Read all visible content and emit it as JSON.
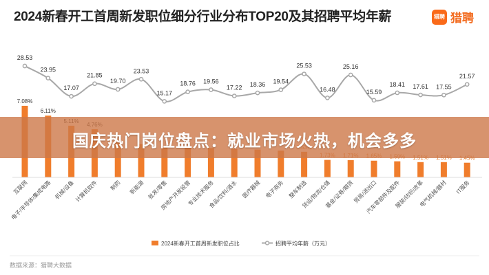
{
  "header": {
    "title": "2024新春开工首周新发职位细分行业分布TOP20及其招聘平均年薪"
  },
  "logo": {
    "mark": "猎聘",
    "text": "猎聘"
  },
  "banner": {
    "text": "国庆热门岗位盘点：就业市场火热，机会多多"
  },
  "source": {
    "text": "数据来源：猎聘大数据"
  },
  "colors": {
    "bar": "#f07d2c",
    "line": "#a8a8a8",
    "banner": "#cd7848"
  },
  "chart_data": {
    "type": "bar",
    "title": "2024新春开工首周新发职位细分行业分布TOP20及其招聘平均年薪",
    "categories": [
      "互联网",
      "电子/半导体/集成电路",
      "机械/设备",
      "计算机软件",
      "制药",
      "新能源",
      "批发/零售",
      "房地产开发经营",
      "专业技术服务",
      "食品/饮料/酒水",
      "医疗器械",
      "电子商务",
      "整车制造",
      "货运/物流/仓储",
      "基金/证券/期货",
      "贸易/进出口",
      "汽车零部件及配件",
      "服装/纺织/皮革",
      "电气机械/器材",
      "IT服务"
    ],
    "series": [
      {
        "name": "2024新春开工首周新发职位占比",
        "type": "bar",
        "values": [
          7.08,
          6.11,
          5.11,
          4.76,
          3.5,
          3.3,
          3.1,
          3.0,
          2.9,
          2.8,
          2.75,
          2.65,
          2.53,
          1.73,
          1.71,
          1.65,
          1.59,
          1.51,
          1.51,
          1.45
        ],
        "labels": [
          "7.08%",
          "6.11%",
          "5.11%",
          "4.76%",
          "",
          "",
          "",
          "",
          "",
          "",
          "",
          "",
          "2.53%",
          "1.73%",
          "1.71%",
          "1.65%",
          "1.59%",
          "1.51%",
          "1.51%",
          "1.45%"
        ]
      },
      {
        "name": "招聘平均年薪（万元）",
        "type": "line",
        "values": [
          28.53,
          23.95,
          17.07,
          21.85,
          19.7,
          23.53,
          15.17,
          18.76,
          19.56,
          17.22,
          18.36,
          19.54,
          25.53,
          16.48,
          25.16,
          15.59,
          18.41,
          17.61,
          17.55,
          21.57
        ],
        "labels": [
          "28.53",
          "23.95",
          "17.07",
          "21.85",
          "19.70",
          "23.53",
          "15.17",
          "18.76",
          "19.56",
          "17.22",
          "18.36",
          "19.54",
          "25.53",
          "16.48",
          "25.16",
          "15.59",
          "18.41",
          "17.61",
          "17.55",
          "21.57"
        ]
      }
    ],
    "legend_position": "bottom",
    "grid": false
  }
}
